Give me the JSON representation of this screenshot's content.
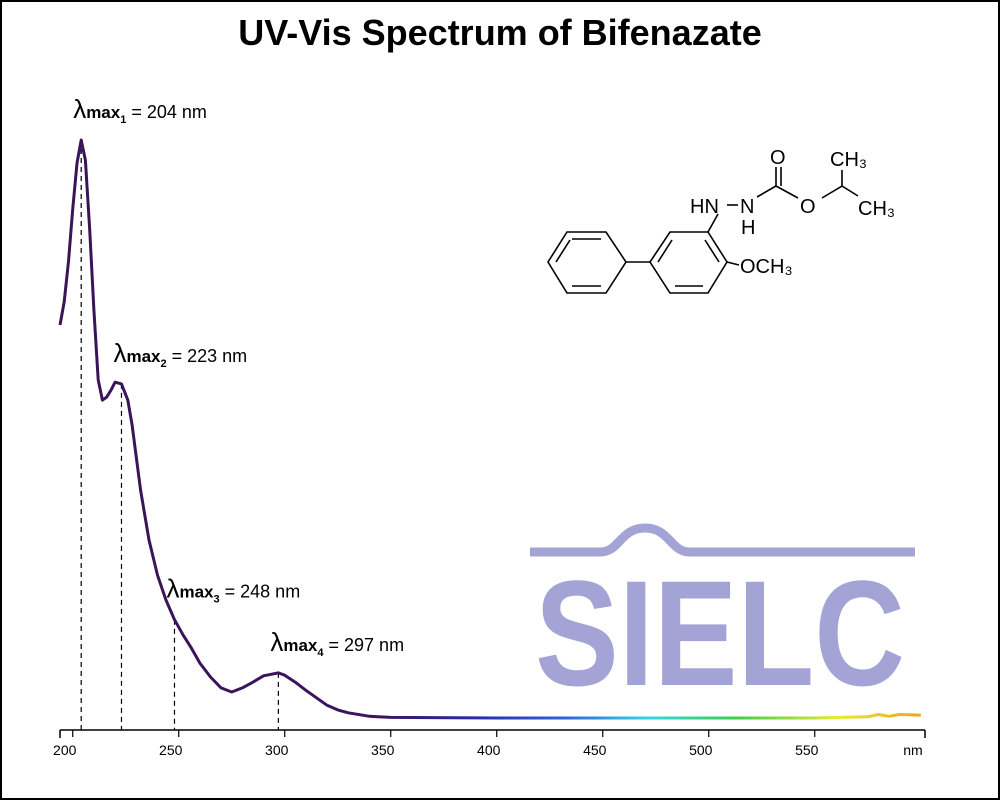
{
  "chart_data": {
    "type": "line",
    "title": "UV-Vis Spectrum of Bifenazate",
    "x_label": "nm",
    "x": [
      194,
      196,
      198,
      200,
      202,
      204,
      206,
      208,
      210,
      212,
      214,
      216,
      218,
      220,
      223,
      226,
      228,
      232,
      236,
      240,
      244,
      248,
      252,
      256,
      260,
      265,
      270,
      275,
      280,
      285,
      290,
      297,
      300,
      305,
      310,
      315,
      320,
      325,
      330,
      340,
      350,
      400,
      450,
      500,
      550,
      575,
      580,
      585,
      590,
      600
    ],
    "values": [
      0.68,
      0.72,
      0.79,
      0.88,
      0.96,
      1.0,
      0.965,
      0.845,
      0.706,
      0.585,
      0.55,
      0.555,
      0.567,
      0.581,
      0.578,
      0.55,
      0.507,
      0.394,
      0.308,
      0.247,
      0.204,
      0.17,
      0.144,
      0.121,
      0.095,
      0.071,
      0.052,
      0.045,
      0.052,
      0.062,
      0.073,
      0.078,
      0.074,
      0.062,
      0.048,
      0.035,
      0.022,
      0.014,
      0.009,
      0.003,
      0.001,
      0,
      0,
      0,
      0,
      0.002,
      0.006,
      0.003,
      0.006,
      0.005
    ],
    "xlim": [
      194,
      602
    ],
    "ylim": [
      0,
      1.0
    ],
    "xticks": [
      200,
      250,
      300,
      350,
      400,
      450,
      500,
      550
    ],
    "annotations": [
      {
        "symbol": "λ",
        "sub": "max",
        "index": "1",
        "text": "= 204 nm",
        "x": 204
      },
      {
        "symbol": "λ",
        "sub": "max",
        "index": "2",
        "text": "= 223 nm",
        "x": 223
      },
      {
        "symbol": "λ",
        "sub": "max",
        "index": "3",
        "text": "= 248 nm",
        "x": 248
      },
      {
        "symbol": "λ",
        "sub": "max",
        "index": "4",
        "text": "= 297 nm",
        "x": 297
      }
    ],
    "structure": {
      "labels": [
        "HN",
        "N",
        "H",
        "O",
        "O",
        "CH₃",
        "CH₃",
        "OCH₃"
      ]
    },
    "logo": "SIELC"
  }
}
